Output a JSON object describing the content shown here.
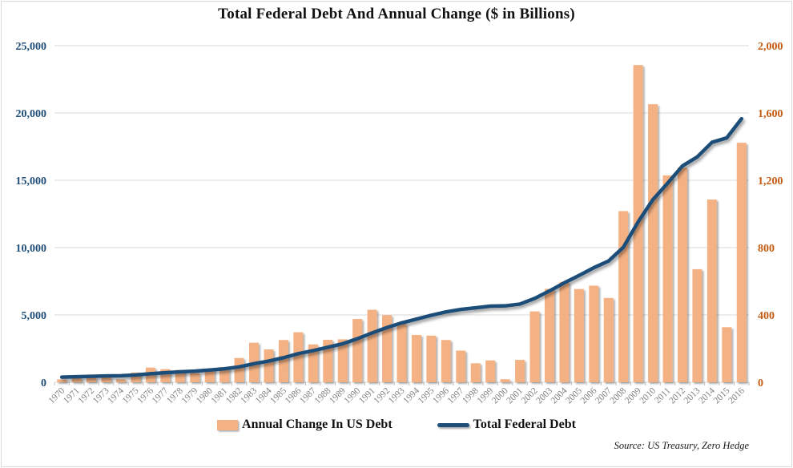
{
  "title": "Total Federal Debt And Annual Change ($ in Billions)",
  "source": "Source: US Treasury, Zero Hedge",
  "legend": [
    {
      "label": "Annual Change In US Debt",
      "swatch": "bar-swatch-icon",
      "color": "#F4B183"
    },
    {
      "label": "Total Federal Debt",
      "swatch": "line-swatch-icon",
      "color": "#1F4E79"
    }
  ],
  "colors": {
    "bar_fill": "#F4B183",
    "line_stroke": "#1F4E79",
    "left_axis_text": "#1F4E79",
    "right_axis_text": "#C55A11",
    "x_axis_text": "#7F7F7F",
    "gridline": "#D9D9D9",
    "tick": "#BFBFBF",
    "frame_border": "#D9D9D9",
    "title_text": "#111111"
  },
  "chart_data": {
    "type": "combo (bar + line)",
    "title": "Total Federal Debt And Annual Change ($ in Billions)",
    "grid": true,
    "legend_position": "bottom",
    "categories": [
      1970,
      1971,
      1972,
      1973,
      1974,
      1975,
      1976,
      1977,
      1978,
      1979,
      1980,
      1981,
      1982,
      1983,
      1984,
      1985,
      1986,
      1987,
      1988,
      1989,
      1990,
      1991,
      1992,
      1993,
      1994,
      1995,
      1996,
      1997,
      1998,
      1999,
      2000,
      2001,
      2002,
      2003,
      2004,
      2005,
      2006,
      2007,
      2008,
      2009,
      2010,
      2011,
      2012,
      2013,
      2014,
      2015,
      2016
    ],
    "series": [
      {
        "name": "Annual Change In US Debt",
        "type": "bar",
        "axis": "right",
        "color": "#F4B183",
        "values": [
          17,
          27,
          29,
          31,
          17,
          58,
          87,
          78,
          73,
          55,
          81,
          90,
          144,
          235,
          195,
          251,
          297,
          225,
          252,
          255,
          376,
          431,
          399,
          347,
          281,
          277,
          251,
          188,
          113,
          130,
          18,
          133,
          421,
          555,
          596,
          554,
          574,
          501,
          1017,
          1885,
          1652,
          1229,
          1276,
          672,
          1086,
          327,
          1423
        ]
      },
      {
        "name": "Total Federal Debt",
        "type": "line",
        "axis": "left",
        "color": "#1F4E79",
        "values": [
          381,
          408,
          436,
          466,
          484,
          541,
          629,
          706,
          777,
          829,
          908,
          998,
          1142,
          1377,
          1572,
          1823,
          2125,
          2350,
          2602,
          2857,
          3233,
          3665,
          4065,
          4411,
          4693,
          4974,
          5225,
          5413,
          5526,
          5656,
          5674,
          5807,
          6228,
          6783,
          7379,
          7933,
          8507,
          9008,
          10025,
          11910,
          13562,
          14790,
          16066,
          16738,
          17824,
          18151,
          19573
        ]
      }
    ],
    "left_axis": {
      "min": 0,
      "max": 25000,
      "ticks": [
        "0",
        "5,000",
        "10,000",
        "15,000",
        "20,000",
        "25,000"
      ]
    },
    "right_axis": {
      "min": 0,
      "max": 2000,
      "ticks": [
        "0",
        "400",
        "800",
        "1,200",
        "1,600",
        "2,000"
      ]
    }
  }
}
